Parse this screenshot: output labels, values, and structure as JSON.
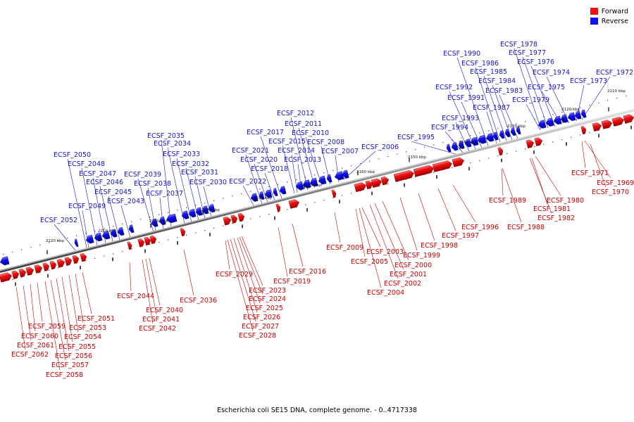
{
  "legend": {
    "forward": {
      "label": "Forward",
      "color": "#ee1111"
    },
    "reverse": {
      "label": "Reverse",
      "color": "#1111ee"
    }
  },
  "caption": "Escherichia coli SE15 DNA, complete genome. - 0..4717338",
  "ticks": [
    "2110 kbp",
    "2120 kbp",
    "2130 kbp",
    "2140 kbp",
    "2150 kbp",
    "2160 kbp",
    "2170 kbp",
    "2180 kbp",
    "2190 kbp",
    "2200 kbp",
    "2210 kbp",
    "2220 kbp"
  ],
  "forward_genes": [
    "ECSF_1969",
    "ECSF_1970",
    "ECSF_1971",
    "ECSF_1980",
    "ECSF_1981",
    "ECSF_1982",
    "ECSF_1988",
    "ECSF_1989",
    "ECSF_1996",
    "ECSF_1997",
    "ECSF_1998",
    "ECSF_1999",
    "ECSF_2000",
    "ECSF_2001",
    "ECSF_2002",
    "ECSF_2003",
    "ECSF_2004",
    "ECSF_2005",
    "ECSF_2009",
    "ECSF_2016",
    "ECSF_2019",
    "ECSF_2023",
    "ECSF_2024",
    "ECSF_2025",
    "ECSF_2026",
    "ECSF_2027",
    "ECSF_2028",
    "ECSF_2029",
    "ECSF_2036",
    "ECSF_2040",
    "ECSF_2041",
    "ECSF_2042",
    "ECSF_2044",
    "ECSF_2051",
    "ECSF_2053",
    "ECSF_2054",
    "ECSF_2055",
    "ECSF_2056",
    "ECSF_2057",
    "ECSF_2058",
    "ECSF_2059",
    "ECSF_2060",
    "ECSF_2061",
    "ECSF_2062"
  ],
  "reverse_genes": [
    "ECSF_1972",
    "ECSF_1973",
    "ECSF_1974",
    "ECSF_1975",
    "ECSF_1976",
    "ECSF_1977",
    "ECSF_1978",
    "ECSF_1979",
    "ECSF_1983",
    "ECSF_1984",
    "ECSF_1985",
    "ECSF_1986",
    "ECSF_1987",
    "ECSF_1990",
    "ECSF_1991",
    "ECSF_1992",
    "ECSF_1993",
    "ECSF_1994",
    "ECSF_1995",
    "ECSF_2006",
    "ECSF_2007",
    "ECSF_2008",
    "ECSF_2010",
    "ECSF_2011",
    "ECSF_2012",
    "ECSF_2013",
    "ECSF_2014",
    "ECSF_2015",
    "ECSF_2017",
    "ECSF_2018",
    "ECSF_2020",
    "ECSF_2021",
    "ECSF_2022",
    "ECSF_2030",
    "ECSF_2031",
    "ECSF_2032",
    "ECSF_2033",
    "ECSF_2034",
    "ECSF_2035",
    "ECSF_2037",
    "ECSF_2038",
    "ECSF_2039",
    "ECSF_2043",
    "ECSF_2045",
    "ECSF_2046",
    "ECSF_2047",
    "ECSF_2048",
    "ECSF_2049",
    "ECSF_2050",
    "ECSF_2052"
  ]
}
